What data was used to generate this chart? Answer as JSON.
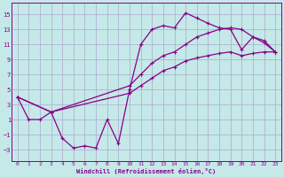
{
  "xlabel": "Windchill (Refroidissement éolien,°C)",
  "bg_color": "#c5e8e8",
  "line_color": "#880088",
  "grid_color": "#aaaacc",
  "yticks": [
    -3,
    -1,
    1,
    3,
    5,
    7,
    9,
    11,
    13,
    15
  ],
  "xticks": [
    0,
    1,
    2,
    3,
    4,
    5,
    6,
    7,
    8,
    9,
    10,
    11,
    12,
    13,
    14,
    15,
    16,
    17,
    18,
    19,
    20,
    21,
    22,
    23
  ],
  "ylim": [
    -4.5,
    16.5
  ],
  "xlim": [
    -0.5,
    23.5
  ],
  "line1_x": [
    0,
    1,
    2,
    3,
    4,
    5,
    6,
    7,
    8,
    9,
    10,
    11,
    12,
    13,
    14,
    15,
    16,
    17,
    18,
    19,
    20,
    21,
    22,
    23
  ],
  "line1_y": [
    4,
    1,
    1,
    2,
    -1.5,
    -2.8,
    -2.5,
    -2.8,
    1,
    -2.2,
    5,
    11,
    13,
    13.5,
    13.2,
    15.2,
    14.5,
    13.8,
    13.2,
    13,
    10.3,
    12,
    11.5,
    10
  ],
  "line2_x": [
    0,
    3,
    10,
    11,
    12,
    13,
    14,
    15,
    16,
    17,
    18,
    19,
    20,
    21,
    22,
    23
  ],
  "line2_y": [
    4,
    2,
    4.5,
    5.5,
    6.5,
    7.5,
    8.0,
    8.8,
    9.2,
    9.5,
    9.8,
    10,
    9.5,
    9.8,
    10,
    10
  ],
  "line3_x": [
    0,
    3,
    10,
    11,
    12,
    13,
    14,
    15,
    16,
    17,
    18,
    19,
    20,
    21,
    22,
    23
  ],
  "line3_y": [
    4,
    2,
    5.5,
    7.0,
    8.5,
    9.5,
    10.0,
    11.0,
    12.0,
    12.5,
    13.0,
    13.2,
    13.0,
    12.0,
    11.2,
    10
  ]
}
